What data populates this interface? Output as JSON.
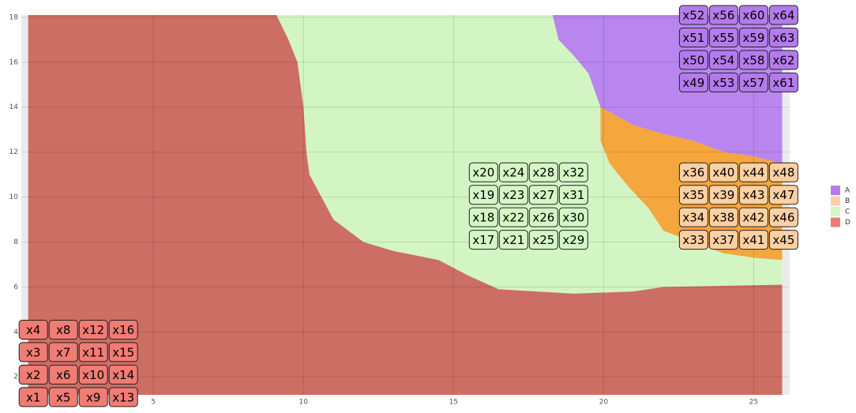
{
  "chart_data": {
    "type": "scatter",
    "xlim": [
      0.6,
      26.2
    ],
    "ylim": [
      1.2,
      18.1
    ],
    "xticks": [
      5,
      10,
      15,
      20,
      25
    ],
    "yticks": [
      2,
      4,
      6,
      8,
      10,
      12,
      14,
      16,
      18
    ],
    "plot_background": "#ebebeb",
    "regions": [
      {
        "color": "#d3f5c4",
        "x": [
          0.83,
          0.83,
          25.95,
          25.95
        ],
        "y": [
          1.2,
          18.1,
          18.1,
          1.2
        ]
      },
      {
        "color": "#cc6e63",
        "x": [
          0.83,
          0.83,
          9.1,
          9.5,
          9.8,
          10.0,
          10.1,
          10.2,
          10.6,
          11,
          12,
          13,
          14.5,
          15.5,
          16.5,
          19,
          21,
          22,
          25.95,
          25.95
        ],
        "y": [
          1.2,
          18.1,
          18.1,
          17,
          16,
          14,
          12,
          11,
          10,
          9,
          8,
          7.6,
          7.2,
          6.5,
          5.9,
          5.7,
          5.8,
          6.0,
          6.1,
          1.2
        ]
      },
      {
        "color": "#b886ee",
        "x": [
          18.3,
          25.95,
          25.95,
          25,
          24,
          23,
          22,
          21,
          19.9,
          19.5,
          19,
          18.5
        ],
        "y": [
          18.1,
          18.1,
          11.5,
          11.8,
          12,
          12.5,
          12.8,
          13.2,
          14,
          15.5,
          16.3,
          17
        ]
      },
      {
        "color": "#f5a63c",
        "x": [
          19.9,
          21,
          22,
          23,
          24,
          25,
          25.95,
          25.95,
          25,
          24,
          23,
          22,
          21.5,
          20.8,
          20.2,
          19.9
        ],
        "y": [
          14,
          13.2,
          12.8,
          12.5,
          12,
          11.8,
          11.5,
          7.2,
          7.3,
          7.5,
          8,
          8.5,
          9.5,
          10.5,
          11.5,
          12.5
        ]
      }
    ],
    "series": [
      {
        "name": "A",
        "color": "#b57bee",
        "labels": [
          "x49",
          "x50",
          "x51",
          "x52",
          "x53",
          "x54",
          "x55",
          "x56",
          "x57",
          "x58",
          "x59",
          "x60",
          "x61",
          "x62",
          "x63",
          "x64"
        ],
        "x": [
          23,
          23,
          23,
          23,
          24,
          24,
          24,
          24,
          25,
          25,
          25,
          25,
          26,
          26,
          26,
          26
        ],
        "y": [
          15.1,
          16.1,
          17.1,
          18.1,
          15.1,
          16.1,
          17.1,
          18.1,
          15.1,
          16.1,
          17.1,
          18.1,
          15.1,
          16.1,
          17.1,
          18.1
        ]
      },
      {
        "name": "B",
        "color": "#ffd0a1",
        "labels": [
          "x33",
          "x34",
          "x35",
          "x36",
          "x37",
          "x38",
          "x39",
          "x40",
          "x41",
          "x42",
          "x43",
          "x44",
          "x45",
          "x46",
          "x47",
          "x48"
        ],
        "x": [
          23,
          23,
          23,
          23,
          24,
          24,
          24,
          24,
          25,
          25,
          25,
          25,
          26,
          26,
          26,
          26
        ],
        "y": [
          8.1,
          9.1,
          10.1,
          11.1,
          8.1,
          9.1,
          10.1,
          11.1,
          8.1,
          9.1,
          10.1,
          11.1,
          8.1,
          9.1,
          10.1,
          11.1
        ]
      },
      {
        "name": "C",
        "color": "#d4f7c5",
        "labels": [
          "x17",
          "x18",
          "x19",
          "x20",
          "x21",
          "x22",
          "x23",
          "x24",
          "x25",
          "x26",
          "x27",
          "x28",
          "x29",
          "x30",
          "x31",
          "x32"
        ],
        "x": [
          16,
          16,
          16,
          16,
          17,
          17,
          17,
          17,
          18,
          18,
          18,
          18,
          19,
          19,
          19,
          19
        ],
        "y": [
          8.1,
          9.1,
          10.1,
          11.1,
          8.1,
          9.1,
          10.1,
          11.1,
          8.1,
          9.1,
          10.1,
          11.1,
          8.1,
          9.1,
          10.1,
          11.1
        ]
      },
      {
        "name": "D",
        "color": "#f07c74",
        "labels": [
          "x1",
          "x2",
          "x3",
          "x4",
          "x5",
          "x6",
          "x7",
          "x8",
          "x9",
          "x10",
          "x11",
          "x12",
          "x13",
          "x14",
          "x15",
          "x16"
        ],
        "x": [
          1,
          1,
          1,
          1,
          2,
          2,
          2,
          2,
          3,
          3,
          3,
          3,
          4,
          4,
          4,
          4
        ],
        "y": [
          1.1,
          2.1,
          3.1,
          4.1,
          1.1,
          2.1,
          3.1,
          4.1,
          1.1,
          2.1,
          3.1,
          4.1,
          1.1,
          2.1,
          3.1,
          4.1
        ]
      }
    ]
  }
}
